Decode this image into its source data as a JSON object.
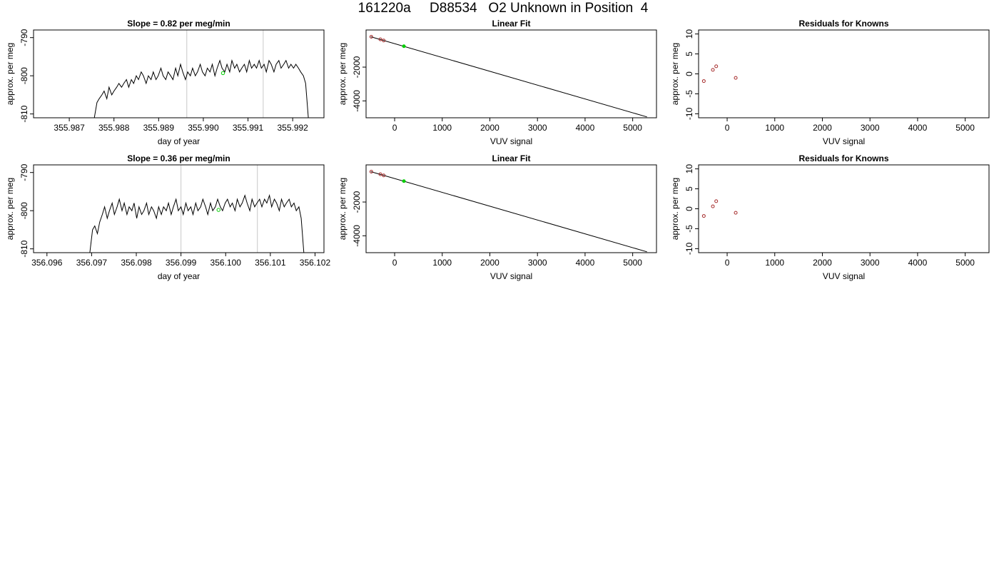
{
  "page": {
    "title": "161220a     D88534   O2 Unknown in Position  4"
  },
  "colors": {
    "axis": "#000000",
    "series_line": "#000000",
    "marker_line": "#c8c8c8",
    "known_points": "#a52a2a",
    "unknown_point": "#00cd00"
  },
  "chart_data": [
    {
      "type": "line",
      "title": "Slope =  0.82  per meg/min",
      "xlabel": "day of year",
      "ylabel": "approx. per meg",
      "xlim": [
        355.9862,
        355.9927
      ],
      "ylim": [
        -811,
        -788
      ],
      "xticks": [
        "355.987",
        "355.988",
        "355.989",
        "355.990",
        "355.991",
        "355.992"
      ],
      "yticks": [
        "-810",
        "-800",
        "-790"
      ],
      "markers_x": [
        355.98963,
        355.99134
      ],
      "unknown_mark": {
        "x": 355.99044,
        "y": -799.3
      },
      "series": [
        {
          "x": [
            355.98756,
            355.98762,
            355.98767,
            355.98773,
            355.98778,
            355.98784,
            355.98789,
            355.98795,
            355.988,
            355.98806,
            355.98811,
            355.98817,
            355.98822,
            355.98828,
            355.98833,
            355.98839,
            355.98844,
            355.9885,
            355.98855,
            355.98861,
            355.98866,
            355.98872,
            355.98877,
            355.98883,
            355.98888,
            355.98894,
            355.98899,
            355.98905,
            355.9891,
            355.98916,
            355.98921,
            355.98927,
            355.98932,
            355.98938,
            355.98943,
            355.98949,
            355.98954,
            355.9896,
            355.98965,
            355.98971,
            355.98976,
            355.98982,
            355.98987,
            355.98993,
            355.98998,
            355.99004,
            355.99009,
            355.99015,
            355.9902,
            355.99026,
            355.99031,
            355.99037,
            355.99042,
            355.99048,
            355.99053,
            355.99059,
            355.99064,
            355.9907,
            355.99075,
            355.99081,
            355.99086,
            355.99092,
            355.99097,
            355.99103,
            355.99108,
            355.99114,
            355.99119,
            355.99125,
            355.9913,
            355.99136,
            355.99141,
            355.99147,
            355.99152,
            355.99158,
            355.99163,
            355.99169,
            355.99174,
            355.9918,
            355.99185,
            355.99191,
            355.99196,
            355.99202,
            355.99207,
            355.99213,
            355.99218,
            355.99224,
            355.99229,
            355.99235
          ],
          "y": [
            -811,
            -807,
            -806,
            -805,
            -804,
            -806,
            -803,
            -805,
            -804,
            -803,
            -802,
            -803,
            -802,
            -801,
            -803,
            -801,
            -802,
            -800,
            -801,
            -799,
            -800,
            -802,
            -800,
            -801,
            -799,
            -801,
            -800,
            -798,
            -800,
            -801,
            -799,
            -800,
            -801,
            -798,
            -800,
            -797,
            -799,
            -801,
            -799,
            -800,
            -798,
            -800,
            -799,
            -797,
            -799,
            -800,
            -798,
            -799,
            -797,
            -800,
            -798,
            -796,
            -798,
            -799,
            -797,
            -799,
            -796,
            -798,
            -797,
            -799,
            -798,
            -797,
            -799,
            -796,
            -798,
            -797,
            -798,
            -796,
            -798,
            -797,
            -799,
            -796,
            -797,
            -799,
            -797,
            -796,
            -798,
            -797,
            -796,
            -798,
            -797,
            -798,
            -797,
            -798,
            -799,
            -800,
            -802,
            -811
          ]
        }
      ]
    },
    {
      "type": "scatter",
      "title": "Linear Fit",
      "xlabel": "VUV signal",
      "ylabel": "approx. per meg",
      "xlim": [
        -600,
        5500
      ],
      "ylim": [
        -5000,
        200
      ],
      "xticks": [
        "0",
        "1000",
        "2000",
        "3000",
        "4000",
        "5000"
      ],
      "yticks": [
        "-4000",
        "-2000"
      ],
      "fit_line": {
        "x": [
          -500,
          5300
        ],
        "y": [
          -200,
          -4950
        ]
      },
      "knowns": {
        "x": [
          -490,
          -300,
          -230
        ],
        "y": [
          -200,
          -355,
          -425
        ]
      },
      "unknown": {
        "x": [
          195
        ],
        "y": [
          -760
        ]
      }
    },
    {
      "type": "scatter",
      "title": "Residuals for Knowns",
      "xlabel": "VUV signal",
      "ylabel": "approx. per meg",
      "xlim": [
        -600,
        5500
      ],
      "ylim": [
        -11,
        11
      ],
      "xticks": [
        "0",
        "1000",
        "2000",
        "3000",
        "4000",
        "5000"
      ],
      "yticks": [
        "-10",
        "-5",
        "0",
        "5",
        "10"
      ],
      "points": {
        "x": [
          -490,
          -300,
          -230,
          180
        ],
        "y": [
          -1.8,
          1.0,
          1.9,
          -1.0
        ]
      }
    },
    {
      "type": "line",
      "title": "Slope =  0.36  per meg/min",
      "xlabel": "day of year",
      "ylabel": "approx. per meg",
      "xlim": [
        356.0957,
        356.1022
      ],
      "ylim": [
        -811,
        -788
      ],
      "xticks": [
        "356.096",
        "356.097",
        "356.098",
        "356.099",
        "356.100",
        "356.101",
        "356.102"
      ],
      "yticks": [
        "-810",
        "-800",
        "-790"
      ],
      "markers_x": [
        356.099,
        356.10071
      ],
      "unknown_mark": {
        "x": 356.09984,
        "y": -799.8
      },
      "series": [
        {
          "x": [
            356.09696,
            356.09702,
            356.09707,
            356.09713,
            356.09718,
            356.09724,
            356.09729,
            356.09735,
            356.0974,
            356.09746,
            356.09751,
            356.09757,
            356.09762,
            356.09768,
            356.09773,
            356.09779,
            356.09784,
            356.0979,
            356.09795,
            356.09801,
            356.09806,
            356.09812,
            356.09817,
            356.09823,
            356.09828,
            356.09834,
            356.09839,
            356.09845,
            356.0985,
            356.09856,
            356.09861,
            356.09867,
            356.09872,
            356.09878,
            356.09883,
            356.09889,
            356.09894,
            356.099,
            356.09905,
            356.09911,
            356.09916,
            356.09922,
            356.09927,
            356.09933,
            356.09938,
            356.09944,
            356.09949,
            356.09955,
            356.0996,
            356.09966,
            356.09971,
            356.09977,
            356.09982,
            356.09988,
            356.09993,
            356.09999,
            356.10004,
            356.1001,
            356.10015,
            356.10021,
            356.10026,
            356.10032,
            356.10037,
            356.10043,
            356.10048,
            356.10054,
            356.10059,
            356.10065,
            356.1007,
            356.10076,
            356.10081,
            356.10087,
            356.10092,
            356.10098,
            356.10103,
            356.10109,
            356.10114,
            356.1012,
            356.10125,
            356.10131,
            356.10136,
            356.10142,
            356.10147,
            356.10153,
            356.10158,
            356.10164,
            356.10169,
            356.10175
          ],
          "y": [
            -811,
            -805,
            -804,
            -806,
            -803,
            -801,
            -799,
            -802,
            -800,
            -798,
            -801,
            -799,
            -797,
            -800,
            -798,
            -801,
            -799,
            -800,
            -798,
            -802,
            -799,
            -801,
            -800,
            -798,
            -801,
            -799,
            -800,
            -802,
            -799,
            -801,
            -799,
            -800,
            -798,
            -801,
            -799,
            -797,
            -800,
            -799,
            -801,
            -798,
            -800,
            -799,
            -801,
            -798,
            -800,
            -799,
            -797,
            -799,
            -801,
            -798,
            -800,
            -799,
            -797,
            -799,
            -800,
            -798,
            -797,
            -799,
            -798,
            -800,
            -797,
            -799,
            -798,
            -796,
            -798,
            -800,
            -797,
            -799,
            -798,
            -797,
            -799,
            -797,
            -798,
            -796,
            -799,
            -797,
            -798,
            -800,
            -797,
            -799,
            -798,
            -797,
            -799,
            -798,
            -800,
            -799,
            -802,
            -811
          ]
        }
      ]
    },
    {
      "type": "scatter",
      "title": "Linear Fit",
      "xlabel": "VUV signal",
      "ylabel": "approx. per meg",
      "xlim": [
        -600,
        5500
      ],
      "ylim": [
        -5000,
        200
      ],
      "xticks": [
        "0",
        "1000",
        "2000",
        "3000",
        "4000",
        "5000"
      ],
      "yticks": [
        "-4000",
        "-2000"
      ],
      "fit_line": {
        "x": [
          -500,
          5300
        ],
        "y": [
          -200,
          -4950
        ]
      },
      "knowns": {
        "x": [
          -490,
          -300,
          -230
        ],
        "y": [
          -200,
          -355,
          -425
        ]
      },
      "unknown": {
        "x": [
          195
        ],
        "y": [
          -760
        ]
      }
    },
    {
      "type": "scatter",
      "title": "Residuals for Knowns",
      "xlabel": "VUV signal",
      "ylabel": "approx. per meg",
      "xlim": [
        -600,
        5500
      ],
      "ylim": [
        -11,
        11
      ],
      "xticks": [
        "0",
        "1000",
        "2000",
        "3000",
        "4000",
        "5000"
      ],
      "yticks": [
        "-10",
        "-5",
        "0",
        "5",
        "10"
      ],
      "points": {
        "x": [
          -490,
          -300,
          -230,
          180
        ],
        "y": [
          -1.8,
          0.6,
          1.9,
          -1.0
        ]
      }
    }
  ]
}
